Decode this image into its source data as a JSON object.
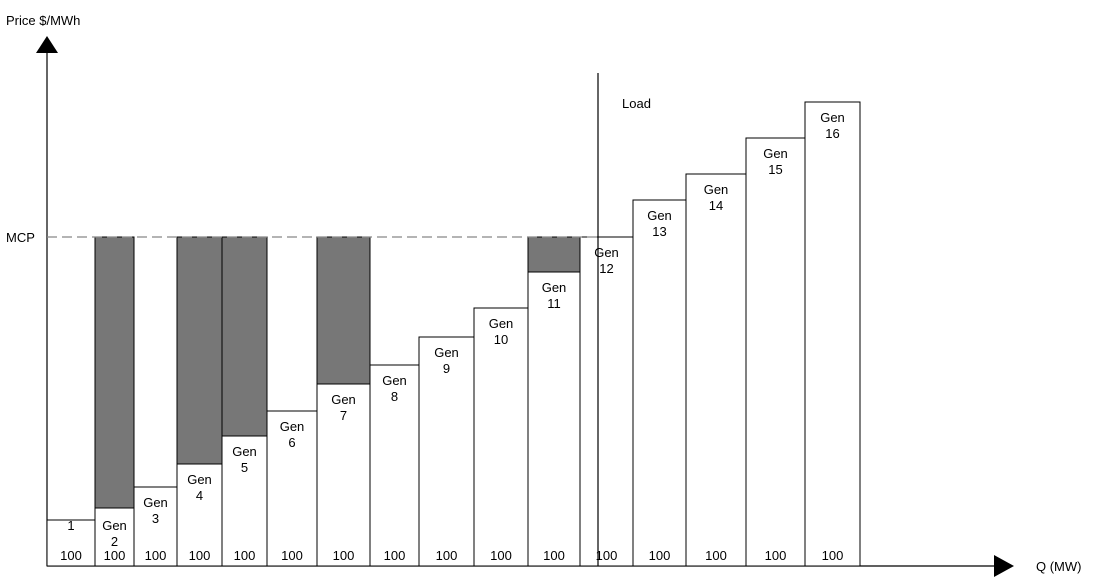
{
  "diagram": {
    "y_axis_label": "Price $/MWh",
    "x_axis_label": "Q (MW)",
    "mcp_label": "MCP",
    "load_label": "Load",
    "colors": {
      "bid_fill": "#ffffff",
      "surplus_fill": "#777777",
      "stroke": "#000000",
      "mcp_line": "#888888"
    },
    "generators": [
      {
        "name": "1",
        "capacity": "100",
        "shaded": false
      },
      {
        "name": "Gen 2",
        "capacity": "100",
        "shaded": true
      },
      {
        "name": "Gen 3",
        "capacity": "100",
        "shaded": false
      },
      {
        "name": "Gen 4",
        "capacity": "100",
        "shaded": true
      },
      {
        "name": "Gen 5",
        "capacity": "100",
        "shaded": true
      },
      {
        "name": "Gen 6",
        "capacity": "100",
        "shaded": false
      },
      {
        "name": "Gen 7",
        "capacity": "100",
        "shaded": true
      },
      {
        "name": "Gen 8",
        "capacity": "100",
        "shaded": false
      },
      {
        "name": "Gen 9",
        "capacity": "100",
        "shaded": false
      },
      {
        "name": "Gen 10",
        "capacity": "100",
        "shaded": false
      },
      {
        "name": "Gen 11",
        "capacity": "100",
        "shaded": true
      },
      {
        "name": "Gen 12",
        "capacity": "100",
        "shaded": false
      },
      {
        "name": "Gen 13",
        "capacity": "100",
        "shaded": false
      },
      {
        "name": "Gen 14",
        "capacity": "100",
        "shaded": false
      },
      {
        "name": "Gen 15",
        "capacity": "100",
        "shaded": false
      },
      {
        "name": "Gen 16",
        "capacity": "100",
        "shaded": false
      }
    ]
  }
}
